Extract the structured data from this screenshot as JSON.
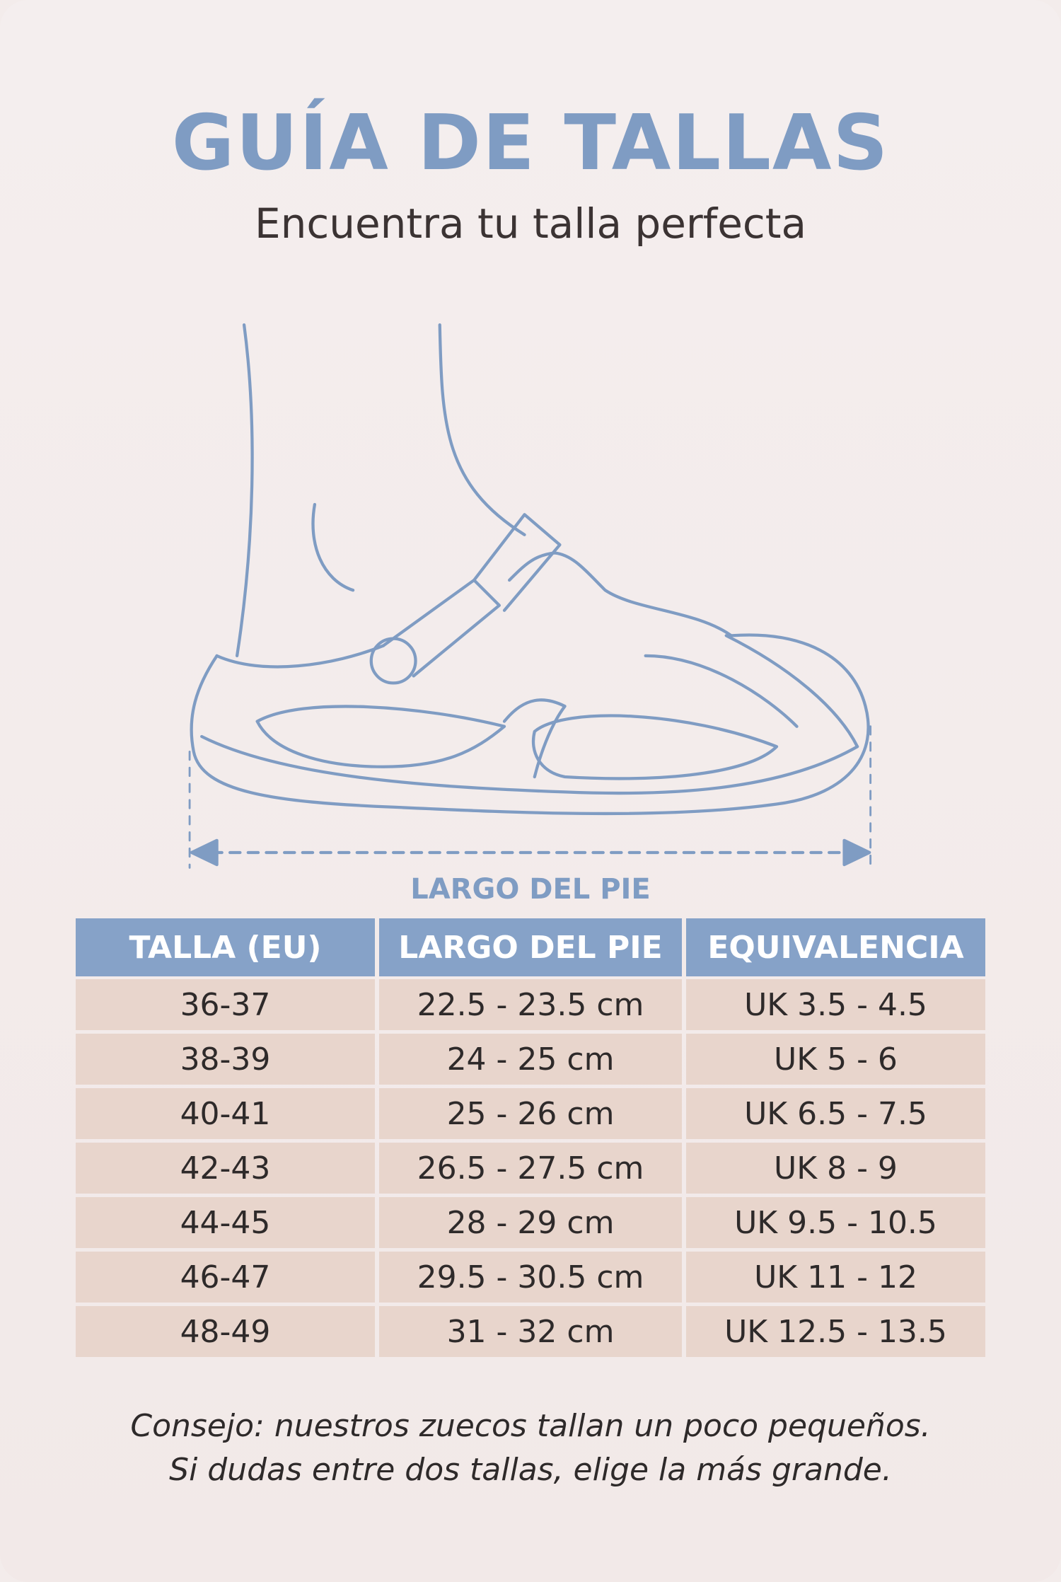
{
  "header": {
    "title": "GUÍA DE TALLAS",
    "subtitle": "Encuentra tu talla perfecta"
  },
  "illustration": {
    "label": "LARGO DEL PIE"
  },
  "table": {
    "columns": [
      "TALLA (EU)",
      "LARGO DEL PIE",
      "EQUIVALENCIA"
    ],
    "rows": [
      [
        "36-37",
        "22.5 - 23.5 cm",
        "UK 3.5 - 4.5"
      ],
      [
        "38-39",
        "24 - 25 cm",
        "UK 5 - 6"
      ],
      [
        "40-41",
        "25 - 26 cm",
        "UK 6.5 - 7.5"
      ],
      [
        "42-43",
        "26.5 - 27.5 cm",
        "UK 8 - 9"
      ],
      [
        "44-45",
        "28 - 29 cm",
        "UK 9.5 - 10.5"
      ],
      [
        "46-47",
        "29.5 - 30.5 cm",
        "UK 11 - 12"
      ],
      [
        "48-49",
        "31 - 32 cm",
        "UK 12.5 - 13.5"
      ]
    ]
  },
  "footer": {
    "lines": [
      "Consejo: nuestros zuecos tallan un poco pequeños.",
      "Si dudas entre dos tallas, elige la más grande."
    ]
  }
}
